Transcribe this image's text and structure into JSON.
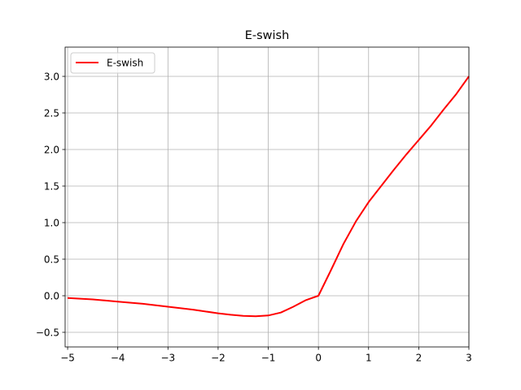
{
  "chart_data": {
    "type": "line",
    "title": "E-swish",
    "xlabel": "",
    "ylabel": "",
    "xlim": [
      -5.05,
      3.0
    ],
    "ylim": [
      -0.7,
      3.4
    ],
    "xticks": [
      -5,
      -4,
      -3,
      -2,
      -1,
      0,
      1,
      2,
      3
    ],
    "xtick_labels": [
      "−5",
      "−4",
      "−3",
      "−2",
      "−1",
      "0",
      "1",
      "2",
      "3"
    ],
    "yticks": [
      -0.5,
      0.0,
      0.5,
      1.0,
      1.5,
      2.0,
      2.5,
      3.0
    ],
    "ytick_labels": [
      "−0.5",
      "0.0",
      "0.5",
      "1.0",
      "1.5",
      "2.0",
      "2.5",
      "3.0"
    ],
    "grid": true,
    "legend_position": "top-left",
    "series": [
      {
        "name": "E-swish",
        "color": "#ff0000",
        "x": [
          -5.0,
          -4.5,
          -4.0,
          -3.5,
          -3.0,
          -2.5,
          -2.0,
          -1.75,
          -1.5,
          -1.25,
          -1.0,
          -0.75,
          -0.5,
          -0.25,
          0.0,
          0.25,
          0.5,
          0.75,
          1.0,
          1.25,
          1.5,
          1.75,
          2.0,
          2.25,
          2.5,
          2.75,
          3.0
        ],
        "y": [
          -0.03,
          -0.05,
          -0.08,
          -0.11,
          -0.15,
          -0.19,
          -0.24,
          -0.26,
          -0.275,
          -0.28,
          -0.27,
          -0.23,
          -0.15,
          -0.06,
          0.0,
          0.35,
          0.71,
          1.02,
          1.28,
          1.5,
          1.72,
          1.93,
          2.13,
          2.33,
          2.55,
          2.76,
          3.0
        ]
      }
    ]
  }
}
